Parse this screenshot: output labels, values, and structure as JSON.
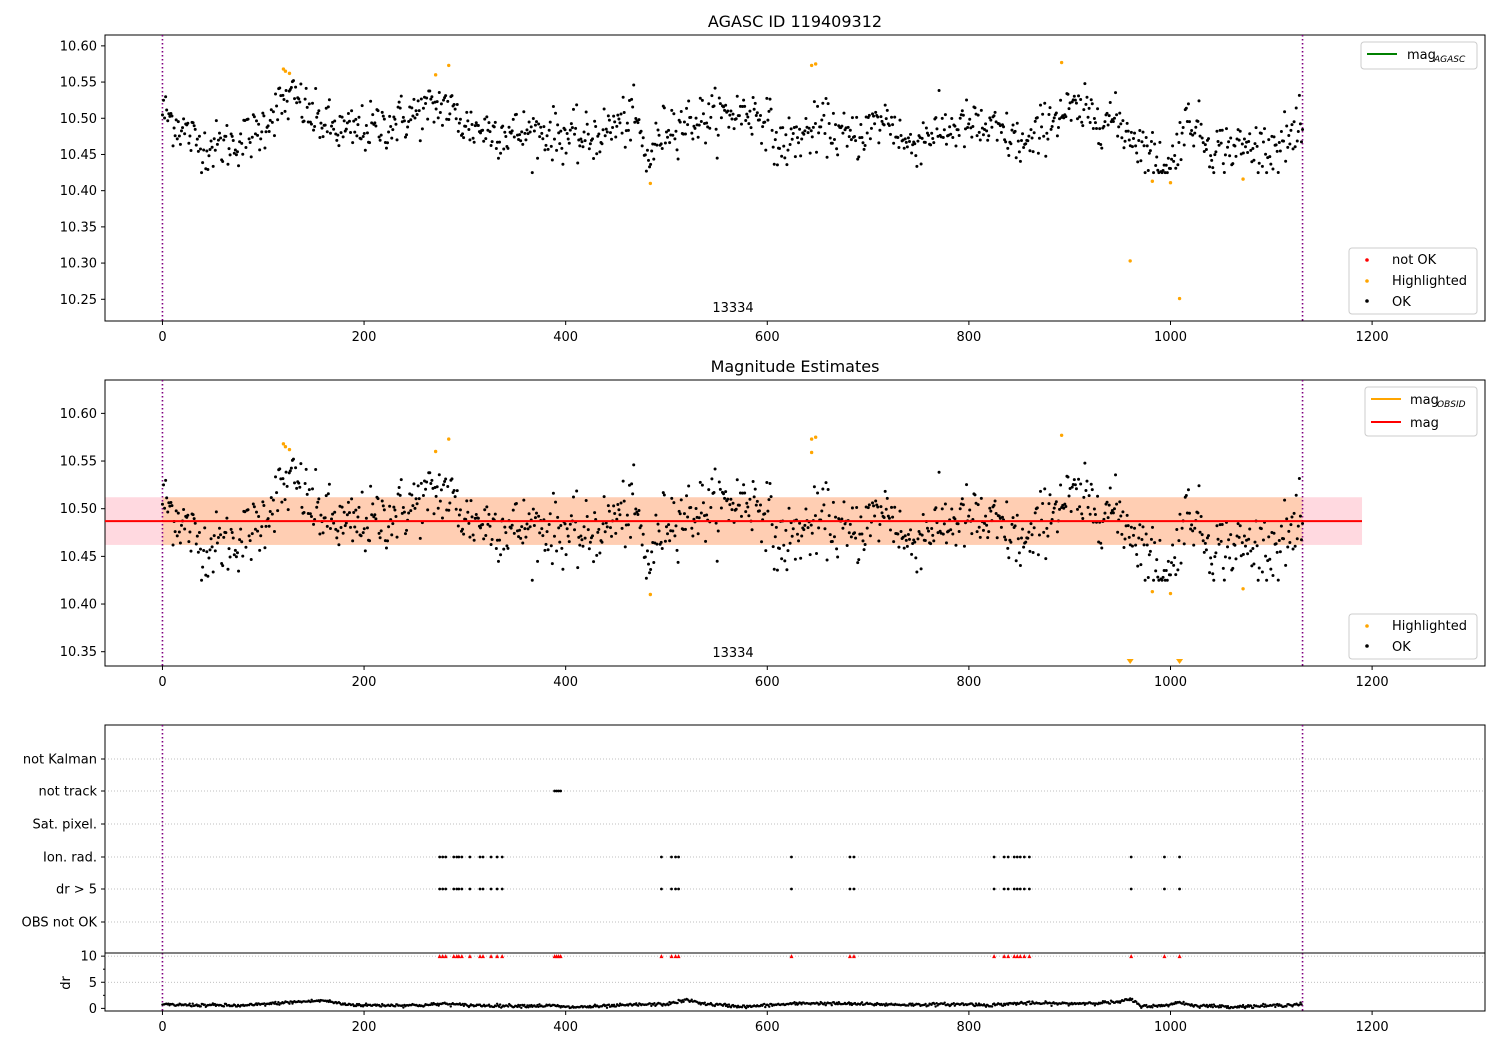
{
  "figure": {
    "obsid_label": "13334"
  },
  "chart_data": [
    {
      "type": "scatter",
      "title": "AGASC ID 119409312",
      "xlabel": "",
      "ylabel": "",
      "xlim": [
        -57,
        1312
      ],
      "ylim": [
        10.22,
        10.615
      ],
      "xticks": [
        0,
        200,
        400,
        600,
        800,
        1000,
        1200
      ],
      "yticks": [
        10.25,
        10.3,
        10.35,
        10.4,
        10.45,
        10.5,
        10.55,
        10.6
      ],
      "vlines": [
        0,
        1131
      ],
      "annotation": "13334",
      "legend_lines": [
        {
          "label": "mag",
          "sub": "AGASC",
          "color": "#008000"
        }
      ],
      "legend_points": [
        {
          "label": "not OK",
          "color": "#ff0000"
        },
        {
          "label": "Highlighted",
          "color": "#ffa500"
        },
        {
          "label": "OK",
          "color": "#000000"
        }
      ],
      "series": [
        {
          "name": "Highlighted",
          "color": "#ffa500",
          "points": [
            [
              120,
              10.568
            ],
            [
              122,
              10.565
            ],
            [
              126,
              10.562
            ],
            [
              271,
              10.56
            ],
            [
              284,
              10.573
            ],
            [
              484,
              10.41
            ],
            [
              644,
              10.573
            ],
            [
              648,
              10.575
            ],
            [
              892,
              10.577
            ],
            [
              960,
              10.303
            ],
            [
              982,
              10.413
            ],
            [
              1000,
              10.411
            ],
            [
              1009,
              10.251
            ],
            [
              1072,
              10.416
            ]
          ]
        },
        {
          "name": "OK",
          "color": "#000000",
          "trend": [
            [
              0,
              10.51
            ],
            [
              40,
              10.46
            ],
            [
              70,
              10.465
            ],
            [
              95,
              10.48
            ],
            [
              110,
              10.51
            ],
            [
              130,
              10.53
            ],
            [
              150,
              10.5
            ],
            [
              180,
              10.48
            ],
            [
              220,
              10.49
            ],
            [
              260,
              10.51
            ],
            [
              280,
              10.52
            ],
            [
              300,
              10.49
            ],
            [
              340,
              10.48
            ],
            [
              380,
              10.48
            ],
            [
              420,
              10.47
            ],
            [
              450,
              10.49
            ],
            [
              470,
              10.5
            ],
            [
              480,
              10.44
            ],
            [
              500,
              10.49
            ],
            [
              540,
              10.5
            ],
            [
              580,
              10.51
            ],
            [
              600,
              10.5
            ],
            [
              610,
              10.46
            ],
            [
              640,
              10.48
            ],
            [
              660,
              10.49
            ],
            [
              680,
              10.47
            ],
            [
              720,
              10.5
            ],
            [
              740,
              10.46
            ],
            [
              760,
              10.48
            ],
            [
              800,
              10.49
            ],
            [
              830,
              10.48
            ],
            [
              860,
              10.46
            ],
            [
              880,
              10.5
            ],
            [
              900,
              10.51
            ],
            [
              940,
              10.5
            ],
            [
              960,
              10.48
            ],
            [
              980,
              10.45
            ],
            [
              1000,
              10.43
            ],
            [
              1010,
              10.48
            ],
            [
              1020,
              10.5
            ],
            [
              1040,
              10.46
            ],
            [
              1080,
              10.46
            ],
            [
              1100,
              10.46
            ],
            [
              1131,
              10.48
            ]
          ],
          "noise": 0.017,
          "count": 1080
        }
      ]
    },
    {
      "type": "scatter",
      "title": "Magnitude Estimates",
      "xlabel": "",
      "ylabel": "",
      "xlim": [
        -57,
        1312
      ],
      "ylim": [
        10.335,
        10.635
      ],
      "xticks": [
        0,
        200,
        400,
        600,
        800,
        1000,
        1200
      ],
      "yticks": [
        10.35,
        10.4,
        10.45,
        10.5,
        10.55,
        10.6
      ],
      "vlines": [
        0,
        1131
      ],
      "annotation": "13334",
      "mag_line": {
        "value": 10.487,
        "xmin": -57,
        "xmax": 1190,
        "color": "#ff0000"
      },
      "band": {
        "low": 10.462,
        "high": 10.512,
        "xmin": -57,
        "xmax": 1190,
        "color": "#ffc0cb"
      },
      "obsid_band": {
        "low": 10.462,
        "high": 10.512,
        "xmin": 0,
        "xmax": 1131,
        "color": "#ffa500"
      },
      "legend_lines": [
        {
          "label": "mag",
          "sub": "OBSID",
          "color": "#ffa500"
        },
        {
          "label": "mag",
          "sub": "",
          "color": "#ff0000"
        }
      ],
      "legend_points": [
        {
          "label": "Highlighted",
          "color": "#ffa500"
        },
        {
          "label": "OK",
          "color": "#000000"
        }
      ],
      "series": [
        {
          "name": "Highlighted",
          "color": "#ffa500",
          "points": [
            [
              120,
              10.568
            ],
            [
              122,
              10.565
            ],
            [
              126,
              10.562
            ],
            [
              271,
              10.56
            ],
            [
              284,
              10.573
            ],
            [
              484,
              10.41
            ],
            [
              644,
              10.559
            ],
            [
              644,
              10.573
            ],
            [
              648,
              10.575
            ],
            [
              892,
              10.577
            ],
            [
              982,
              10.413
            ],
            [
              1000,
              10.411
            ],
            [
              1072,
              10.416
            ]
          ],
          "clipped_markers": [
            960,
            1009
          ]
        },
        {
          "name": "OK",
          "ref": 0
        }
      ]
    },
    {
      "type": "scatter",
      "title": "",
      "xlabel": "",
      "ylabel": "",
      "xlim": [
        -57,
        1312
      ],
      "vlines": [
        0,
        1131
      ],
      "categories": [
        "not Kalman",
        "not track",
        "Sat. pixel.",
        "Ion. rad.",
        "dr > 5",
        "OBS not OK"
      ],
      "flags": {
        "not track": [
          389,
          391,
          393,
          395
        ],
        "Ion. rad.": [
          275,
          278,
          281,
          289,
          292,
          294,
          297,
          305,
          315,
          318,
          326,
          332,
          337,
          495,
          505,
          509,
          512,
          624,
          682,
          686,
          825,
          835,
          839,
          845,
          848,
          851,
          855,
          860,
          961,
          994,
          1009
        ],
        "dr > 5": [
          275,
          278,
          281,
          289,
          292,
          294,
          297,
          305,
          315,
          318,
          326,
          332,
          337,
          495,
          505,
          509,
          512,
          624,
          682,
          686,
          825,
          835,
          839,
          845,
          848,
          851,
          855,
          860,
          961,
          994,
          1009
        ]
      }
    },
    {
      "type": "scatter",
      "title": "",
      "xlabel": "",
      "ylabel": "dr",
      "xlim": [
        -57,
        1312
      ],
      "ylim": [
        -0.5,
        10.6
      ],
      "xticks": [
        0,
        200,
        400,
        600,
        800,
        1000,
        1200
      ],
      "yticks": [
        0,
        5,
        10
      ],
      "vlines": [
        0,
        1131
      ],
      "clipped_marker_value": 10,
      "clipped_marker_color": "#ff0000",
      "clipped_x": [
        275,
        278,
        281,
        289,
        292,
        294,
        297,
        305,
        315,
        318,
        326,
        332,
        337,
        389,
        391,
        393,
        395,
        495,
        505,
        509,
        512,
        624,
        682,
        686,
        825,
        835,
        839,
        845,
        848,
        851,
        855,
        860,
        961,
        994,
        1009
      ],
      "trend": [
        [
          0,
          0.7
        ],
        [
          50,
          0.6
        ],
        [
          80,
          0.5
        ],
        [
          100,
          0.8
        ],
        [
          130,
          1.2
        ],
        [
          160,
          1.5
        ],
        [
          180,
          0.8
        ],
        [
          200,
          0.6
        ],
        [
          260,
          0.6
        ],
        [
          280,
          0.9
        ],
        [
          300,
          0.6
        ],
        [
          340,
          0.5
        ],
        [
          390,
          0.5
        ],
        [
          400,
          0.2
        ],
        [
          440,
          0.4
        ],
        [
          470,
          0.7
        ],
        [
          500,
          0.8
        ],
        [
          520,
          1.6
        ],
        [
          540,
          0.8
        ],
        [
          580,
          0.3
        ],
        [
          600,
          0.6
        ],
        [
          640,
          1.0
        ],
        [
          700,
          0.8
        ],
        [
          740,
          0.7
        ],
        [
          800,
          0.8
        ],
        [
          820,
          0.6
        ],
        [
          850,
          1.0
        ],
        [
          900,
          0.9
        ],
        [
          950,
          1.2
        ],
        [
          960,
          1.8
        ],
        [
          970,
          0.5
        ],
        [
          990,
          0.4
        ],
        [
          1010,
          1.2
        ],
        [
          1020,
          0.6
        ],
        [
          1060,
          0.3
        ],
        [
          1100,
          0.5
        ],
        [
          1131,
          0.8
        ]
      ],
      "noise": 0.15
    }
  ]
}
